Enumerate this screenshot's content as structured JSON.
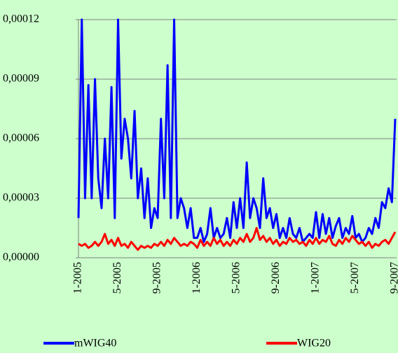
{
  "chart_data": {
    "type": "line",
    "categories": [
      "1-2005",
      null,
      null,
      null,
      null,
      null,
      null,
      null,
      null,
      null,
      null,
      null,
      "5-2005",
      null,
      null,
      null,
      null,
      null,
      null,
      null,
      null,
      null,
      null,
      null,
      "9-2005",
      null,
      null,
      null,
      null,
      null,
      null,
      null,
      null,
      null,
      null,
      null,
      "1-2006",
      null,
      null,
      null,
      null,
      null,
      null,
      null,
      null,
      null,
      null,
      null,
      "5-2006",
      null,
      null,
      null,
      null,
      null,
      null,
      null,
      null,
      null,
      null,
      null,
      "9-2006",
      null,
      null,
      null,
      null,
      null,
      null,
      null,
      null,
      null,
      null,
      null,
      "1-2007",
      null,
      null,
      null,
      null,
      null,
      null,
      null,
      null,
      null,
      null,
      null,
      "5-2007",
      null,
      null,
      null,
      null,
      null,
      null,
      null,
      null,
      null,
      null,
      null,
      "9-2007"
    ],
    "series": [
      {
        "name": "mWIG40",
        "color": "#0000ff",
        "values": [
          2e-05,
          0.00012,
          3e-05,
          8.7e-05,
          3e-05,
          9e-05,
          4e-05,
          2.5e-05,
          6e-05,
          3e-05,
          8.6e-05,
          2e-05,
          0.00012,
          5e-05,
          7e-05,
          6e-05,
          4e-05,
          7.4e-05,
          3e-05,
          4.5e-05,
          2e-05,
          4e-05,
          1.5e-05,
          2.5e-05,
          2e-05,
          7e-05,
          3e-05,
          9.7e-05,
          2e-05,
          0.00012,
          2e-05,
          3e-05,
          2.5e-05,
          1.5e-05,
          2.5e-05,
          1e-05,
          1e-05,
          1.5e-05,
          8e-06,
          1.2e-05,
          2.5e-05,
          1e-05,
          1.5e-05,
          1e-05,
          1.2e-05,
          2e-05,
          1e-05,
          2.8e-05,
          1.5e-05,
          3e-05,
          1.5e-05,
          4.8e-05,
          2e-05,
          3e-05,
          2.5e-05,
          1.5e-05,
          4e-05,
          2e-05,
          2.5e-05,
          1.5e-05,
          2.2e-05,
          1e-05,
          1.5e-05,
          1e-05,
          2e-05,
          1.2e-05,
          1e-05,
          1.5e-05,
          8e-06,
          1e-05,
          1.2e-05,
          1e-05,
          2.3e-05,
          1e-05,
          2.2e-05,
          1.2e-05,
          2e-05,
          1e-05,
          1.6e-05,
          2e-05,
          1e-05,
          1.5e-05,
          1.2e-05,
          2.1e-05,
          1e-05,
          1.2e-05,
          8e-06,
          1e-05,
          1.5e-05,
          1.2e-05,
          2e-05,
          1.5e-05,
          2.8e-05,
          2.5e-05,
          3.5e-05,
          2.8e-05,
          7e-05
        ]
      },
      {
        "name": "WIG20",
        "color": "#ff0000",
        "values": [
          7e-06,
          6e-06,
          7e-06,
          5e-06,
          6e-06,
          8e-06,
          6e-06,
          8e-06,
          1.2e-05,
          7e-06,
          9e-06,
          6e-06,
          1e-05,
          6e-06,
          7e-06,
          5e-06,
          8e-06,
          6e-06,
          4e-06,
          6e-06,
          5e-06,
          6e-06,
          5e-06,
          7e-06,
          6e-06,
          8e-06,
          6e-06,
          9e-06,
          7e-06,
          1e-05,
          8e-06,
          6e-06,
          7e-06,
          6e-06,
          8e-06,
          7e-06,
          5e-06,
          9e-06,
          6e-06,
          8e-06,
          6e-06,
          1e-05,
          7e-06,
          9e-06,
          6e-06,
          8e-06,
          6e-06,
          9e-06,
          7e-06,
          1e-05,
          8e-06,
          1.2e-05,
          8e-06,
          1e-05,
          1.5e-05,
          9e-06,
          1.1e-05,
          8e-06,
          1e-05,
          7e-06,
          9e-06,
          6e-06,
          8e-06,
          7e-06,
          1e-05,
          8e-06,
          9e-06,
          7e-06,
          8e-06,
          6e-06,
          9e-06,
          7e-06,
          1e-05,
          7e-06,
          9e-06,
          8e-06,
          1.1e-05,
          7e-06,
          6e-06,
          9e-06,
          7e-06,
          1e-05,
          8e-06,
          1.1e-05,
          9e-06,
          7e-06,
          8e-06,
          6e-06,
          8e-06,
          5e-06,
          7e-06,
          6e-06,
          8e-06,
          9e-06,
          7e-06,
          1e-05,
          1.3e-05
        ]
      }
    ],
    "ylim": [
      0,
      0.00012
    ],
    "yticks": [
      {
        "value": 0,
        "label": "0,00000"
      },
      {
        "value": 3e-05,
        "label": "0,00003"
      },
      {
        "value": 6e-05,
        "label": "0,00006"
      },
      {
        "value": 9e-05,
        "label": "0,00009"
      },
      {
        "value": 0.00012,
        "label": "0,00012"
      }
    ],
    "grid": true,
    "legend": "bottom"
  }
}
